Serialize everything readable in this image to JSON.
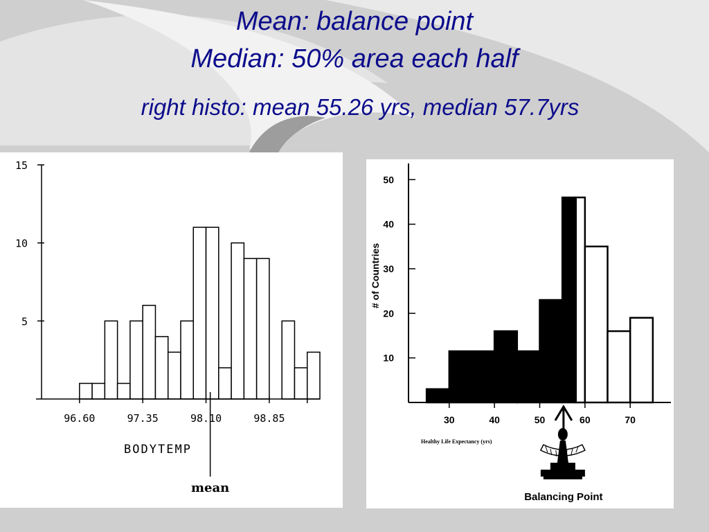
{
  "slide": {
    "title_line1": "Mean: balance point",
    "title_line2": "Median: 50% area each half",
    "subtitle": "right histo: mean 55.26 yrs, median 57.7yrs"
  },
  "chart_data": [
    {
      "type": "bar",
      "subtype": "histogram",
      "xlabel": "BODYTEMP",
      "ylabel": "",
      "ylim": [
        0,
        15
      ],
      "yticks": [
        "15",
        "10",
        "5"
      ],
      "ytick_values": [
        15,
        10,
        5
      ],
      "xlim": [
        96.15,
        99.45
      ],
      "xticks": [
        "96.60",
        "97.35",
        "98.10",
        "98.85"
      ],
      "xtick_values": [
        96.6,
        97.35,
        98.1,
        98.85
      ],
      "bin_width": 0.15,
      "bin_start": 96.6,
      "values": [
        1,
        1,
        5,
        1,
        5,
        6,
        4,
        3,
        5,
        11,
        11,
        2,
        10,
        9,
        9,
        0,
        5,
        2,
        3
      ],
      "annotation": "mean",
      "annotation_x": 98.15
    },
    {
      "type": "bar",
      "subtype": "histogram",
      "xlabel": "Healthy Life Expectancy (yrs)",
      "ylabel": "# of Countries",
      "ylim": [
        0,
        53
      ],
      "yticks": [
        "50",
        "40",
        "30",
        "20",
        "10"
      ],
      "ytick_values": [
        50,
        40,
        30,
        20,
        10
      ],
      "xlim": [
        21,
        79
      ],
      "xticks": [
        "30",
        "40",
        "50",
        "60",
        "70"
      ],
      "xtick_values": [
        30,
        40,
        50,
        60,
        70
      ],
      "bins": [
        {
          "start": 25,
          "end": 30,
          "value": 3,
          "fill": "black"
        },
        {
          "start": 30,
          "end": 40,
          "value": 11.5,
          "fill": "black"
        },
        {
          "start": 40,
          "end": 45,
          "value": 16,
          "fill": "black"
        },
        {
          "start": 45,
          "end": 50,
          "value": 11.5,
          "fill": "black"
        },
        {
          "start": 50,
          "end": 55,
          "value": 23,
          "fill": "black"
        },
        {
          "start": 55,
          "end": 58,
          "value": 46,
          "fill": "black"
        },
        {
          "start": 58,
          "end": 60,
          "value": 46,
          "fill": "white"
        },
        {
          "start": 60,
          "end": 65,
          "value": 35,
          "fill": "white"
        },
        {
          "start": 65,
          "end": 70,
          "value": 16,
          "fill": "white"
        },
        {
          "start": 70,
          "end": 75,
          "value": 19,
          "fill": "white"
        }
      ],
      "annotation": "Balancing Point",
      "balance_x": 55.26
    }
  ]
}
